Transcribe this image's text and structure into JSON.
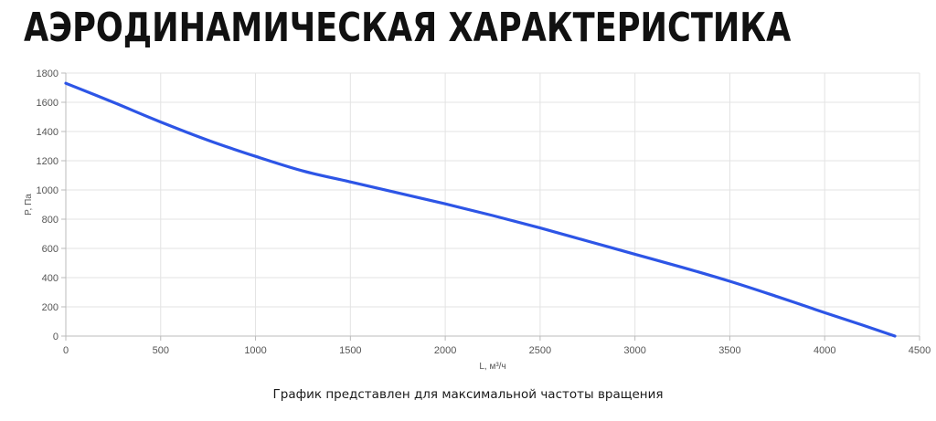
{
  "title": "АЭРОДИНАМИЧЕСКАЯ ХАРАКТЕРИСТИКА",
  "note": "График представлен для максимальной частоты вращения",
  "chart_data": {
    "type": "line",
    "xlabel": "L, м³/ч",
    "ylabel": "P, Па",
    "xlim": [
      0,
      4500
    ],
    "ylim": [
      0,
      1800
    ],
    "x_ticks": [
      0,
      500,
      1000,
      1500,
      2000,
      2500,
      3000,
      3500,
      4000,
      4500
    ],
    "y_ticks": [
      0,
      200,
      400,
      600,
      800,
      1000,
      1200,
      1400,
      1600,
      1800
    ],
    "grid": true,
    "series": [
      {
        "color": "#2d55e6",
        "x": [
          0,
          250,
          500,
          750,
          1000,
          1250,
          1500,
          1750,
          2000,
          2250,
          2500,
          2750,
          3000,
          3250,
          3500,
          3750,
          4000,
          4200,
          4370
        ],
        "y": [
          1730,
          1600,
          1465,
          1340,
          1230,
          1130,
          1055,
          980,
          905,
          825,
          740,
          650,
          560,
          470,
          375,
          270,
          160,
          75,
          0
        ]
      }
    ]
  }
}
